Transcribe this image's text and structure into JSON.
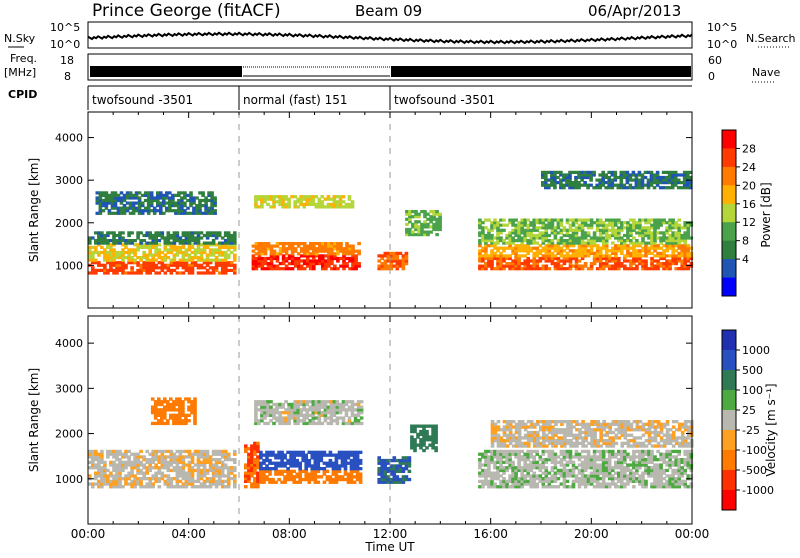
{
  "header": {
    "station": "Prince George (fitACF)",
    "beam": "Beam 09",
    "date": "06/Apr/2013"
  },
  "top_panels": {
    "nsky_label": "N.Sky",
    "nsearch_label": "N.Search",
    "nsky_ticks": [
      "10^5",
      "10^0"
    ],
    "nsky_right_ticks": [
      "10^5",
      "10^0"
    ],
    "freq_label": "Freq.",
    "freq_unit": "[MHz]",
    "freq_ticks": [
      "18",
      "8"
    ],
    "nave_label": "Nave",
    "nave_ticks": [
      "60",
      "0"
    ],
    "cpid_label": "CPID",
    "cpid_segments": [
      {
        "label": "twofsound -3501",
        "start_h": 0,
        "end_h": 6
      },
      {
        "label": "normal (fast) 151",
        "start_h": 6,
        "end_h": 12
      },
      {
        "label": "twofsound -3501",
        "start_h": 12,
        "end_h": 24
      }
    ]
  },
  "colors": {
    "power": [
      "#0000ff",
      "#1f55b5",
      "#2f7f3f",
      "#4aa24a",
      "#b5d63a",
      "#ffb000",
      "#ff7a00",
      "#ff3b00",
      "#ff0000"
    ],
    "velocity": [
      "#2030b0",
      "#2850c0",
      "#2f7a55",
      "#4caa40",
      "#b8b8b0",
      "#ffa020",
      "#ff7a00",
      "#ff3000",
      "#ff0000"
    ]
  },
  "chart_data": [
    {
      "type": "heatmap",
      "panel": "power",
      "xlabel": "",
      "ylabel": "Slant Range [km]",
      "xlim": [
        0,
        24
      ],
      "ylim": [
        0,
        4600
      ],
      "yticks": [
        1000,
        2000,
        3000,
        4000
      ],
      "colorbar": {
        "label": "Power [dB]",
        "ticks": [
          "4",
          "8",
          "12",
          "16",
          "20",
          "24",
          "28"
        ],
        "range": [
          0,
          30
        ]
      },
      "regions": [
        {
          "t": [
            0.0,
            5.8
          ],
          "r": [
            800,
            1100
          ],
          "v": 26
        },
        {
          "t": [
            0.0,
            5.8
          ],
          "r": [
            1100,
            1500
          ],
          "v": 17
        },
        {
          "t": [
            0.0,
            5.8
          ],
          "r": [
            1500,
            1800
          ],
          "v": 7
        },
        {
          "t": [
            0.3,
            5.0
          ],
          "r": [
            2200,
            2700
          ],
          "v": 6
        },
        {
          "t": [
            6.5,
            10.8
          ],
          "r": [
            900,
            1250
          ],
          "v": 28
        },
        {
          "t": [
            6.5,
            10.8
          ],
          "r": [
            1250,
            1500
          ],
          "v": 22
        },
        {
          "t": [
            6.6,
            10.5
          ],
          "r": [
            2350,
            2650
          ],
          "v": 16
        },
        {
          "t": [
            11.5,
            12.6
          ],
          "r": [
            900,
            1300
          ],
          "v": 24
        },
        {
          "t": [
            12.6,
            14.0
          ],
          "r": [
            1700,
            2300
          ],
          "v": 12
        },
        {
          "t": [
            15.5,
            24.0
          ],
          "r": [
            900,
            1200
          ],
          "v": 25
        },
        {
          "t": [
            15.5,
            24.0
          ],
          "r": [
            1200,
            1500
          ],
          "v": 20
        },
        {
          "t": [
            15.5,
            24.0
          ],
          "r": [
            1500,
            2100
          ],
          "v": 13
        },
        {
          "t": [
            18.0,
            24.0
          ],
          "r": [
            2800,
            3200
          ],
          "v": 6
        }
      ]
    },
    {
      "type": "heatmap",
      "panel": "velocity",
      "xlabel": "Time UT",
      "ylabel": "Slant Range [km]",
      "xlim": [
        0,
        24
      ],
      "ylim": [
        0,
        4600
      ],
      "yticks": [
        1000,
        2000,
        3000,
        4000
      ],
      "xticks": [
        "00:00",
        "04:00",
        "08:00",
        "12:00",
        "16:00",
        "20:00",
        "00:00"
      ],
      "colorbar": {
        "label": "Velocity [m s⁻¹]",
        "ticks": [
          "1000",
          "500",
          "100",
          "25",
          "-25",
          "-100",
          "-500",
          "-1000"
        ]
      },
      "regions": [
        {
          "t": [
            0.0,
            5.8
          ],
          "r": [
            800,
            1600
          ],
          "v": -10
        },
        {
          "t": [
            2.5,
            4.2
          ],
          "r": [
            2200,
            2800
          ],
          "v": -200
        },
        {
          "t": [
            6.2,
            6.8
          ],
          "r": [
            800,
            1800
          ],
          "v": -300
        },
        {
          "t": [
            6.8,
            10.8
          ],
          "r": [
            900,
            1200
          ],
          "v": -150
        },
        {
          "t": [
            6.8,
            10.8
          ],
          "r": [
            1200,
            1600
          ],
          "v": 400
        },
        {
          "t": [
            6.6,
            10.8
          ],
          "r": [
            2200,
            2700
          ],
          "v": 5
        },
        {
          "t": [
            11.5,
            12.8
          ],
          "r": [
            900,
            1500
          ],
          "v": 300
        },
        {
          "t": [
            12.8,
            13.8
          ],
          "r": [
            1600,
            2200
          ],
          "v": 150
        },
        {
          "t": [
            15.5,
            24.0
          ],
          "r": [
            800,
            1600
          ],
          "v": 10
        },
        {
          "t": [
            16.0,
            24.0
          ],
          "r": [
            1700,
            2300
          ],
          "v": -10
        }
      ]
    }
  ]
}
